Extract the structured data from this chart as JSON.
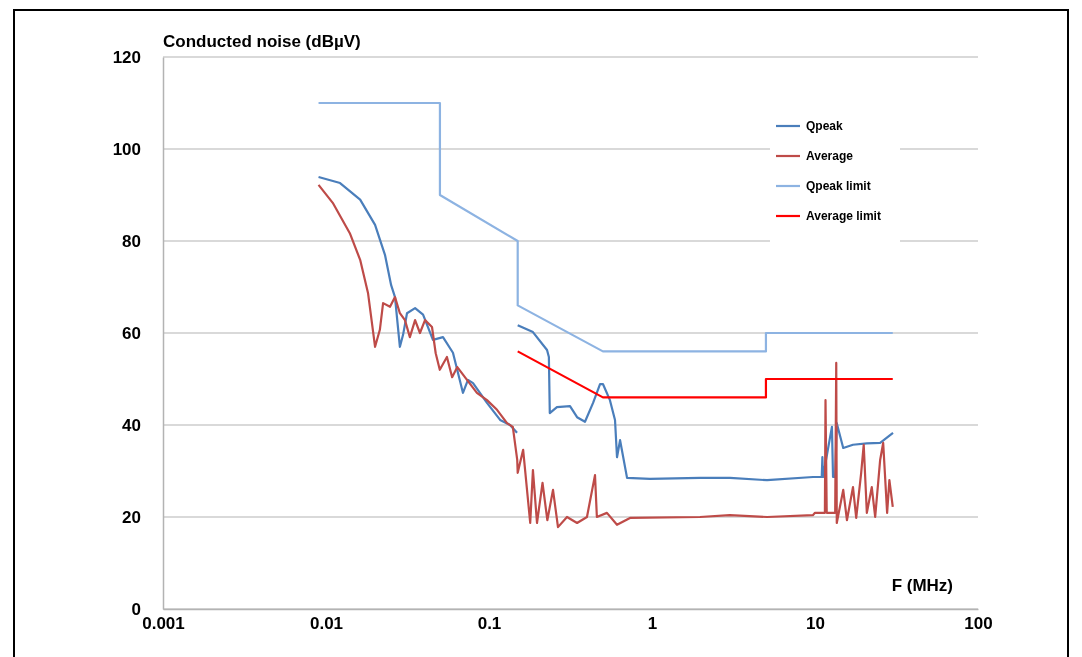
{
  "chart_data": {
    "type": "line",
    "ylabel": "Conducted noise (dBµV)",
    "xlabel": "F (MHz)",
    "log": "x",
    "xlim": [
      0.001,
      100
    ],
    "xticks": [
      0.001,
      0.01,
      0.1,
      1,
      10,
      100
    ],
    "ylim": [
      0,
      120
    ],
    "yticks": [
      0,
      20,
      40,
      60,
      80,
      100,
      120
    ],
    "grid": "y",
    "legend": "top right",
    "marker": "none",
    "line_style": "solid",
    "series": [
      {
        "name": "Qpeak",
        "color": "#4a7ebb",
        "x": [
          0.009,
          0.0122,
          0.0162,
          0.02,
          0.023,
          0.0251,
          0.0265,
          0.0284,
          0.0297,
          0.0314,
          0.0352,
          0.0394,
          0.0453,
          0.0522,
          0.0601,
          0.0692,
          0.0743,
          0.0798,
          0.0972,
          0.117,
          0.1346,
          0.1486,
          0.149,
          0.15,
          0.186,
          0.227,
          0.233,
          0.236,
          0.261,
          0.314,
          0.347,
          0.388,
          0.435,
          0.48,
          0.5,
          0.552,
          0.593,
          0.61,
          0.637,
          0.703,
          0.972,
          1.97,
          3.01,
          5.08,
          9.72,
          11.0,
          11.1,
          11.2,
          12.7,
          12.9,
          13.3,
          13.6,
          14.9,
          17.1,
          20.8,
          25.1,
          30.1
        ],
        "values": [
          93.9,
          92.6,
          89,
          83.5,
          77,
          70.4,
          67.8,
          57,
          59.6,
          64.3,
          65.4,
          64,
          58.5,
          59.1,
          55.7,
          47,
          49.8,
          49.1,
          44.8,
          41.1,
          40,
          38.3,
          null,
          61.7,
          60.2,
          56.3,
          54.8,
          42.6,
          43.9,
          44.1,
          41.7,
          40.7,
          44.8,
          48.9,
          48.9,
          45.4,
          41.1,
          33,
          36.7,
          28.5,
          28.3,
          28.5,
          28.5,
          28,
          28.7,
          28.7,
          33,
          28.7,
          39.6,
          28.7,
          28.7,
          40.4,
          35,
          35.7,
          36,
          36.1,
          38.3
        ]
      },
      {
        "name": "Average",
        "color": "#be4b48",
        "x": [
          0.009,
          0.011,
          0.014,
          0.0162,
          0.0181,
          0.02,
          0.0214,
          0.0224,
          0.0247,
          0.0265,
          0.0284,
          0.0305,
          0.0327,
          0.0352,
          0.0377,
          0.0405,
          0.0447,
          0.0471,
          0.0499,
          0.0552,
          0.0594,
          0.0639,
          0.0733,
          0.0843,
          0.0972,
          0.112,
          0.129,
          0.14,
          0.149,
          0.15,
          0.162,
          0.179,
          0.186,
          0.197,
          0.213,
          0.228,
          0.247,
          0.265,
          0.301,
          0.347,
          0.399,
          0.447,
          0.459,
          0.529,
          0.61,
          0.733,
          1.97,
          3.0,
          5.08,
          9.7,
          10,
          11.5,
          11.6,
          11.8,
          13.3,
          13.5,
          13.6,
          14.9,
          15.7,
          17.1,
          17.9,
          19.2,
          19.9,
          20.8,
          22.3,
          23.4,
          25.1,
          26.2,
          27.7,
          28.6,
          30
        ],
        "values": [
          92.2,
          88.3,
          81.7,
          75.9,
          68.7,
          57,
          60.7,
          66.5,
          65.7,
          67.8,
          64.3,
          62.8,
          59.1,
          62.8,
          60,
          62.8,
          61.3,
          55.6,
          52,
          54.8,
          50.4,
          52.6,
          49.8,
          47,
          45.4,
          43.3,
          40.4,
          39.6,
          32.4,
          29.6,
          34.6,
          18.7,
          30.2,
          18.7,
          27.4,
          19.3,
          25.9,
          17.8,
          20,
          18.7,
          20,
          29.1,
          20,
          20.9,
          18.3,
          19.8,
          20,
          20.4,
          20,
          20.4,
          20.9,
          20.9,
          45.4,
          20.9,
          20.9,
          53.5,
          18.7,
          25.9,
          19.3,
          26.5,
          19.8,
          29.6,
          35.7,
          20.9,
          26.5,
          20,
          32.4,
          36.1,
          20.9,
          28,
          22.2
        ]
      },
      {
        "name": "Qpeak limit",
        "color": "#8db3e2",
        "x": [
          0.009,
          0.05,
          0.05,
          0.15,
          0.15,
          0.5,
          5,
          5,
          30
        ],
        "values": [
          110,
          110,
          90,
          80,
          66,
          56,
          56,
          60,
          60
        ]
      },
      {
        "name": "Average limit",
        "color": "#ff0000",
        "x": [
          0.15,
          0.5,
          5,
          5,
          30
        ],
        "values": [
          56,
          46,
          46,
          50,
          50
        ]
      }
    ]
  }
}
